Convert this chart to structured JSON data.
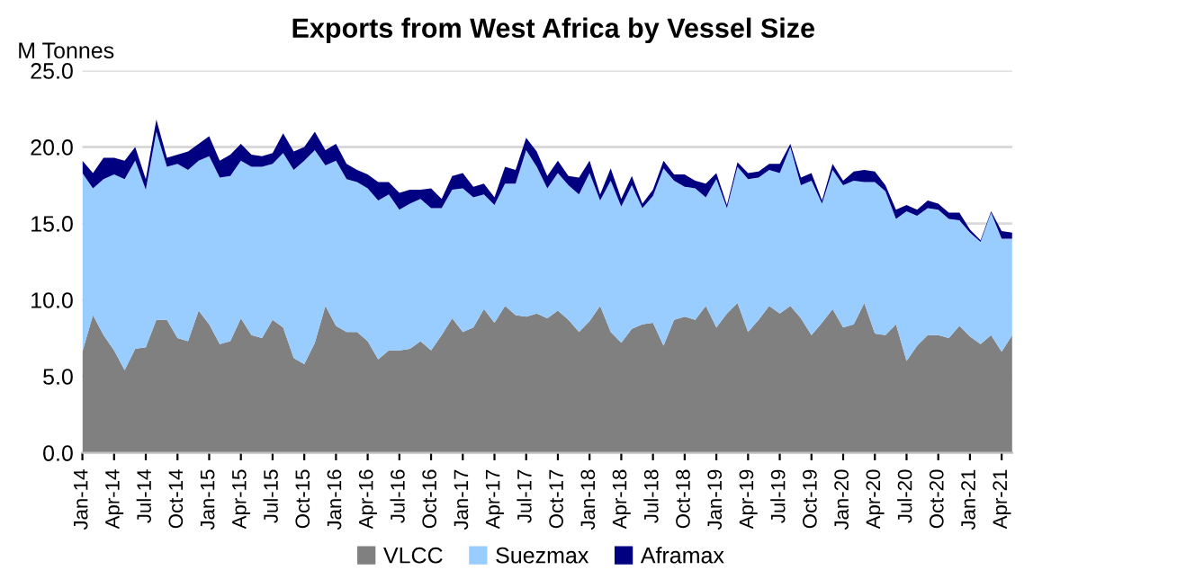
{
  "chart_data": {
    "type": "area",
    "stacked": true,
    "title": "Exports from West Africa by Vessel Size",
    "ylabel": "M Tonnes",
    "categories": [
      "Jan-14",
      null,
      null,
      "Apr-14",
      null,
      null,
      "Jul-14",
      null,
      null,
      "Oct-14",
      null,
      null,
      "Jan-15",
      null,
      null,
      "Apr-15",
      null,
      null,
      "Jul-15",
      null,
      null,
      "Oct-15",
      null,
      null,
      "Jan-16",
      null,
      null,
      "Apr-16",
      null,
      null,
      "Jul-16",
      null,
      null,
      "Oct-16",
      null,
      null,
      "Jan-17",
      null,
      null,
      "Apr-17",
      null,
      null,
      "Jul-17",
      null,
      null,
      "Oct-17",
      null,
      null,
      "Jan-18",
      null,
      null,
      "Apr-18",
      null,
      null,
      "Jul-18",
      null,
      null,
      "Oct-18",
      null,
      null,
      "Jan-19",
      null,
      null,
      "Apr-19",
      null,
      null,
      "Jul-19",
      null,
      null,
      "Oct-19",
      null,
      null,
      "Jan-20",
      null,
      null,
      "Apr-20",
      null,
      null,
      "Jul-20",
      null,
      null,
      "Oct-20",
      null,
      null,
      "Jan-21",
      null,
      null,
      "Apr-21",
      null
    ],
    "series": [
      {
        "name": "VLCC",
        "color": "#808080",
        "values": [
          6.6,
          9.0,
          7.7,
          6.7,
          5.4,
          6.8,
          6.9,
          8.7,
          8.7,
          7.5,
          7.3,
          9.3,
          8.4,
          7.1,
          7.3,
          8.8,
          7.7,
          7.5,
          8.7,
          8.2,
          6.2,
          5.8,
          7.2,
          9.6,
          8.3,
          7.9,
          7.9,
          7.3,
          6.1,
          6.7,
          6.7,
          6.8,
          7.3,
          6.7,
          7.7,
          8.8,
          7.9,
          8.2,
          9.4,
          8.5,
          9.6,
          9.0,
          8.9,
          9.1,
          8.8,
          9.3,
          8.7,
          7.9,
          8.6,
          9.6,
          7.9,
          7.2,
          8.1,
          8.4,
          8.5,
          7.0,
          8.7,
          8.9,
          8.7,
          9.6,
          8.2,
          9.1,
          9.8,
          7.9,
          8.7,
          9.6,
          9.1,
          9.6,
          8.8,
          7.7,
          8.5,
          9.4,
          8.2,
          8.4,
          9.8,
          7.8,
          7.7,
          8.4,
          6.0,
          7.0,
          7.7,
          7.7,
          7.5,
          8.3,
          7.6,
          7.1,
          7.7,
          6.6,
          7.7
        ]
      },
      {
        "name": "Suezmax",
        "color": "#99ccff",
        "values": [
          11.7,
          8.3,
          10.2,
          11.5,
          12.5,
          12.3,
          10.3,
          12.3,
          10.0,
          11.4,
          11.2,
          9.8,
          11.0,
          10.9,
          10.8,
          10.3,
          11.0,
          11.2,
          10.2,
          11.4,
          12.3,
          13.3,
          12.6,
          9.2,
          10.8,
          10.0,
          9.8,
          10.0,
          10.4,
          10.2,
          9.2,
          9.5,
          9.3,
          9.3,
          8.3,
          8.4,
          9.4,
          8.5,
          7.5,
          7.7,
          8.0,
          8.6,
          10.9,
          9.6,
          8.5,
          9.0,
          8.8,
          9.0,
          9.7,
          6.9,
          9.9,
          8.9,
          9.4,
          7.6,
          8.3,
          11.6,
          9.1,
          8.5,
          8.6,
          7.1,
          9.7,
          6.9,
          8.9,
          10.0,
          9.3,
          8.9,
          9.2,
          10.4,
          8.7,
          10.1,
          7.8,
          9.1,
          9.3,
          9.4,
          7.9,
          9.9,
          9.4,
          6.9,
          9.8,
          8.5,
          8.3,
          8.2,
          7.8,
          6.9,
          6.8,
          6.7,
          8.0,
          7.4,
          6.3
        ]
      },
      {
        "name": "Aframax",
        "color": "#000080",
        "values": [
          0.8,
          1.0,
          1.4,
          1.1,
          1.2,
          0.9,
          0.7,
          0.8,
          0.6,
          0.6,
          1.2,
          1.1,
          1.3,
          1.1,
          1.4,
          1.1,
          0.8,
          0.7,
          0.7,
          1.3,
          1.2,
          0.9,
          1.2,
          1.0,
          1.1,
          1.0,
          0.8,
          0.9,
          1.2,
          0.8,
          1.1,
          0.9,
          0.6,
          1.3,
          0.6,
          0.9,
          1.0,
          0.7,
          0.7,
          0.5,
          1.1,
          0.9,
          0.8,
          1.0,
          0.8,
          0.8,
          0.6,
          1.1,
          0.8,
          0.4,
          0.8,
          0.5,
          0.6,
          0.3,
          0.4,
          0.5,
          0.4,
          0.8,
          0.5,
          0.9,
          0.4,
          0.2,
          0.3,
          0.4,
          0.4,
          0.4,
          0.6,
          0.2,
          0.5,
          0.5,
          0.2,
          0.4,
          0.3,
          0.6,
          0.8,
          0.7,
          0.4,
          0.6,
          0.4,
          0.4,
          0.5,
          0.4,
          0.4,
          0.5,
          0.2,
          0.1,
          0.1,
          0.5,
          0.4
        ]
      }
    ],
    "ylim": [
      0,
      25
    ],
    "yticks": [
      {
        "value": 0,
        "label": "0.0"
      },
      {
        "value": 5,
        "label": "5.0"
      },
      {
        "value": 10,
        "label": "10.0"
      },
      {
        "value": 15,
        "label": "15.0"
      },
      {
        "value": 20,
        "label": "20.0"
      },
      {
        "value": 25,
        "label": "25.0"
      }
    ],
    "grid": "y",
    "legend": "bottom"
  }
}
